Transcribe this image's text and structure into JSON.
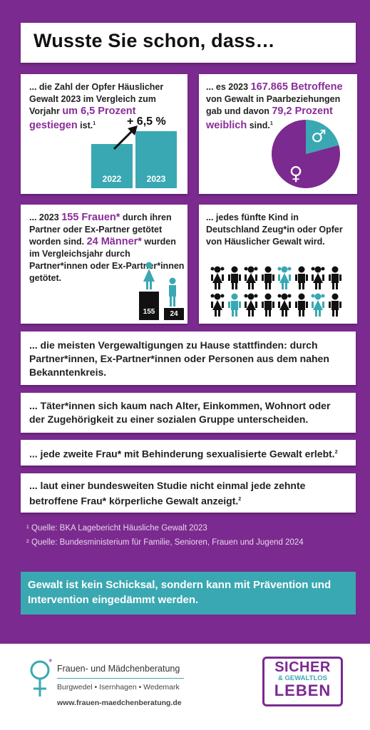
{
  "title": "Wusste Sie schon, dass…",
  "card1": {
    "pre": "... die Zahl der Opfer Häuslicher Gewalt 2023 im Vergleich zum Vorjahr ",
    "hl": "um 6,5 Prozent gestiegen",
    "post": " ist.",
    "sup": "1",
    "change": "+ 6,5 %",
    "bars": [
      {
        "label": "2022",
        "value": 100
      },
      {
        "label": "2023",
        "value": 106.5
      }
    ]
  },
  "card2": {
    "pre": "... es 2023 ",
    "hl1": "167.865 Betroffene",
    "mid": " von Gewalt in Paarbeziehungen gab und davon ",
    "hl2": "79,2 Prozent weiblich",
    "post": " sind.",
    "sup": "1",
    "female_percent": 79.2,
    "male_symbol": "♂",
    "female_symbol": "♀"
  },
  "card3": {
    "pre": "... 2023 ",
    "hl1": "155 Frauen*",
    "mid": " durch ihren Partner oder Ex-Partner getötet worden sind. ",
    "hl2": "24 Männer*",
    "post": " wurden im Vergleichsjahr durch Partner*innen oder Ex-Partner*innen getötet.",
    "women": "155",
    "men": "24"
  },
  "card4": {
    "text": "... jedes fünfte Kind in Deutschland Zeug*in oder Opfer von Häuslicher Gewalt wird."
  },
  "facts": [
    "... die meisten Vergewaltigungen zu Hause stattfinden: durch Partner*innen, Ex-Partner*innen oder Personen aus dem nahen Bekanntenkreis.",
    "... Täter*innen sich kaum nach Alter, Einkommen, Wohnort oder der Zugehörigkeit zu einer sozialen Gruppe unterscheiden.",
    "... jede zweite Frau* mit Behinderung sexualisierte Gewalt erlebt.",
    "... laut einer bundesweiten Studie nicht einmal jede zehnte betroffene Frau* körperliche Gewalt anzeigt."
  ],
  "fact_sups": [
    "",
    "",
    "2",
    "2"
  ],
  "sources": [
    "¹ Quelle: BKA Lagebericht Häusliche Gewalt 2023",
    "² Quelle: Bundesministerium für Familie, Senioren, Frauen und Jugend 2024"
  ],
  "banner": "Gewalt ist kein Schicksal, sondern kann mit Prävention und Intervention eingedämmt werden.",
  "footer": {
    "org": "Frauen- und Mädchenberatung",
    "places": "Burgwedel • Isernhagen • Wedemark",
    "url": "www.frauen-maedchenberatung.de",
    "badge_top": "SICHER",
    "badge_mid": "& GEWALTLOS",
    "badge_bottom": "LEBEN"
  },
  "colors": {
    "purple": "#7b2a8f",
    "teal": "#3aa8b2",
    "dark": "#222222"
  }
}
